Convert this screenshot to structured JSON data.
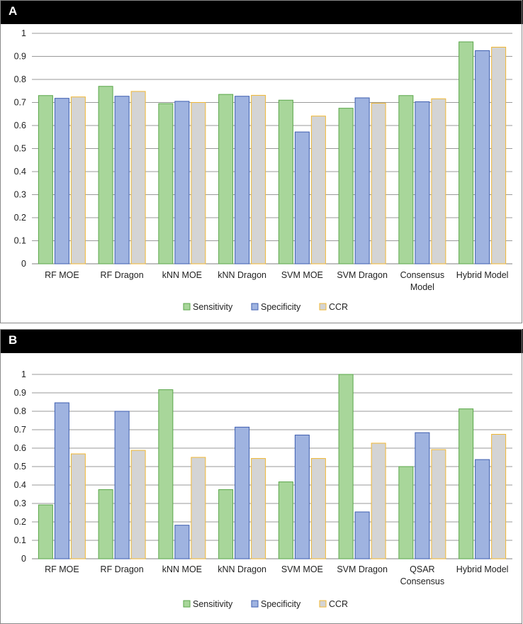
{
  "chart_data": [
    {
      "panel_label": "A",
      "type": "bar",
      "categories": [
        [
          "RF MOE"
        ],
        [
          "RF Dragon"
        ],
        [
          "kNN MOE"
        ],
        [
          "kNN Dragon"
        ],
        [
          "SVM MOE"
        ],
        [
          "SVM Dragon"
        ],
        [
          "Consensus",
          "Model"
        ],
        [
          "Hybrid Model"
        ]
      ],
      "series": [
        {
          "name": "Sensitivity",
          "color": "#a8d69a",
          "stroke": "#5aa64a",
          "values": [
            0.73,
            0.77,
            0.695,
            0.735,
            0.71,
            0.675,
            0.73,
            0.963
          ]
        },
        {
          "name": "Specificity",
          "color": "#9fb3e0",
          "stroke": "#3f5fb0",
          "values": [
            0.718,
            0.727,
            0.705,
            0.727,
            0.572,
            0.72,
            0.703,
            0.925
          ]
        },
        {
          "name": "CCR",
          "color": "#d4d4d4",
          "stroke": "#f0b733",
          "values": [
            0.724,
            0.748,
            0.7,
            0.731,
            0.641,
            0.697,
            0.716,
            0.94
          ]
        }
      ],
      "yticks": [
        "0",
        "0.1",
        "0.2",
        "0.3",
        "0.4",
        "0.5",
        "0.6",
        "0.7",
        "0.8",
        "0.9",
        "1"
      ],
      "ylim": [
        0,
        1
      ],
      "grid": true,
      "legend": "bottom-center"
    },
    {
      "panel_label": "B",
      "type": "bar",
      "categories": [
        [
          "RF MOE"
        ],
        [
          "RF Dragon"
        ],
        [
          "kNN MOE"
        ],
        [
          "kNN Dragon"
        ],
        [
          "SVM MOE"
        ],
        [
          "SVM Dragon"
        ],
        [
          "QSAR",
          "Consensus"
        ],
        [
          "Hybrid Model"
        ]
      ],
      "series": [
        {
          "name": "Sensitivity",
          "color": "#a8d69a",
          "stroke": "#5aa64a",
          "values": [
            0.292,
            0.375,
            0.917,
            0.375,
            0.417,
            1.0,
            0.5,
            0.813
          ]
        },
        {
          "name": "Specificity",
          "color": "#9fb3e0",
          "stroke": "#3f5fb0",
          "values": [
            0.846,
            0.8,
            0.182,
            0.714,
            0.671,
            0.254,
            0.684,
            0.538
          ]
        },
        {
          "name": "CCR",
          "color": "#d4d4d4",
          "stroke": "#f0b733",
          "values": [
            0.569,
            0.588,
            0.55,
            0.544,
            0.544,
            0.627,
            0.592,
            0.675
          ]
        }
      ],
      "yticks": [
        "0",
        "0.1",
        "0.2",
        "0.3",
        "0.4",
        "0.5",
        "0.6",
        "0.7",
        "0.8",
        "0.9",
        "1"
      ],
      "ylim": [
        0,
        1
      ],
      "grid": true,
      "legend": "bottom-center"
    }
  ]
}
